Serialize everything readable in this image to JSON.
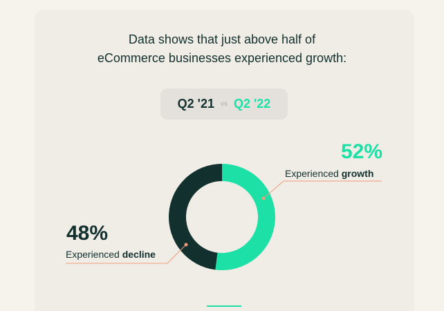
{
  "headline": {
    "line1": "Data shows that just above half of",
    "line2": "eCommerce businesses experienced growth:"
  },
  "comparison": {
    "period_a": "Q2 '21",
    "vs": "vs",
    "period_b": "Q2 '22"
  },
  "colors": {
    "growth": "#1ce0a6",
    "decline": "#12302e",
    "leader_line": "#f29a7a"
  },
  "chart_data": {
    "type": "pie",
    "donut": true,
    "categories": [
      "growth",
      "decline"
    ],
    "values": [
      52,
      48
    ],
    "slices": [
      {
        "pct_label": "52%",
        "label_prefix": "Experienced",
        "label_strong": "growth",
        "color": "#1ce0a6"
      },
      {
        "pct_label": "48%",
        "label_prefix": "Experienced",
        "label_strong": "decline",
        "color": "#12302e"
      }
    ]
  }
}
